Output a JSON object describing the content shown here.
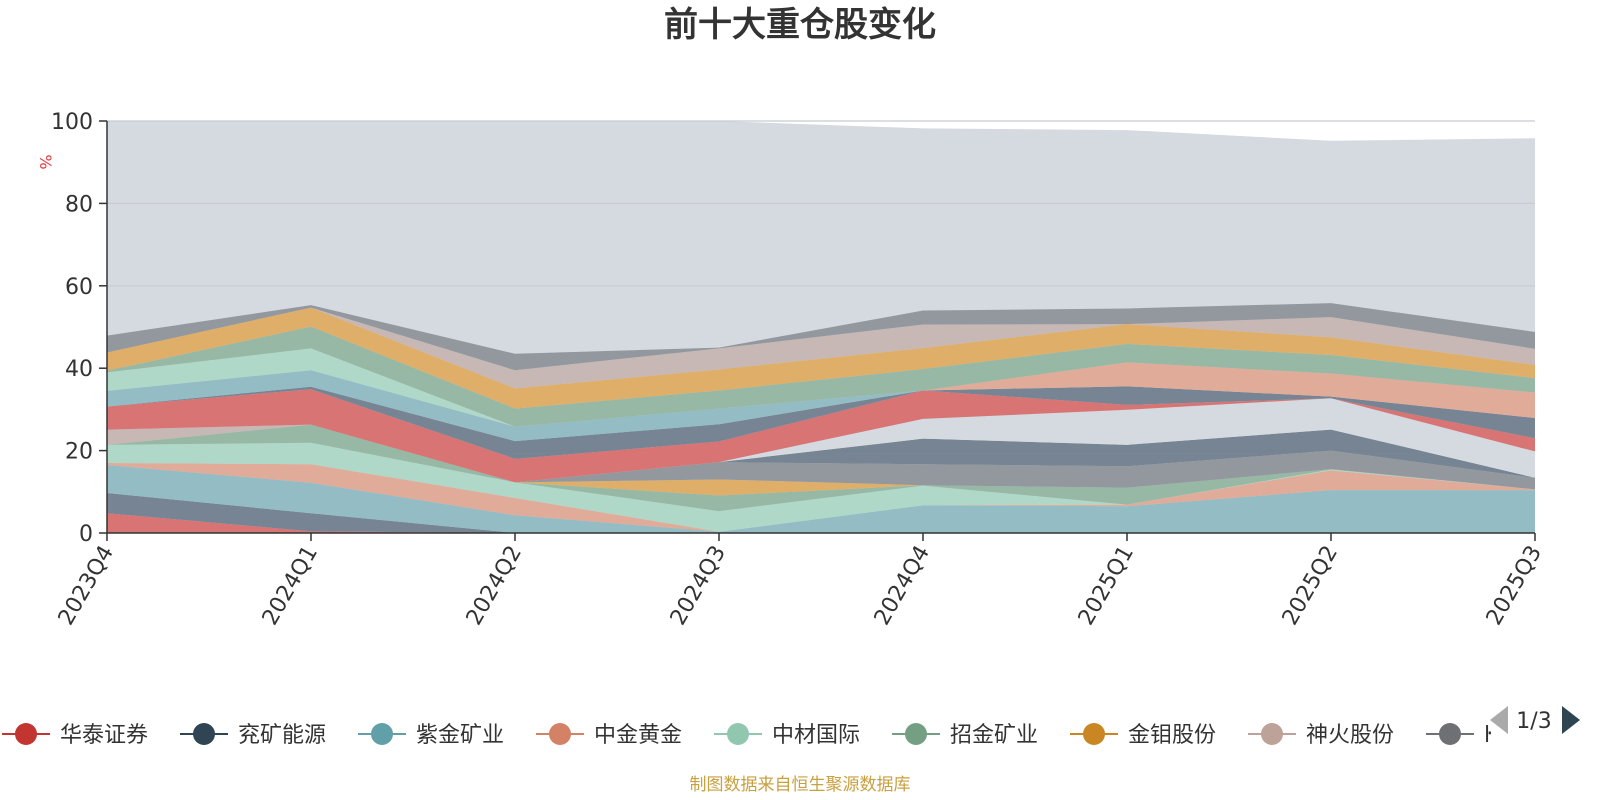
{
  "chart_data": {
    "type": "area",
    "stacking": "stacked",
    "title": "前十大重仓股变化",
    "ylabel": "%",
    "ylim": [
      0,
      100
    ],
    "y_ticks": [
      0,
      20,
      40,
      60,
      80,
      100
    ],
    "categories": [
      "2023Q4",
      "2024Q1",
      "2024Q2",
      "2024Q3",
      "2024Q4",
      "2025Q1",
      "2025Q2",
      "2025Q3"
    ],
    "grid": true,
    "source": "制图数据来自恒生聚源数据库",
    "legend": {
      "position": "bottom",
      "visible_items": [
        "华泰证券",
        "兖矿能源",
        "紫金矿业",
        "中金黄金",
        "中材国际",
        "招金矿业",
        "金钼股份",
        "神火股份",
        "ŀ"
      ],
      "page_label": "1/3"
    },
    "background_area": {
      "values": [
        100,
        100,
        100,
        100,
        98.2,
        97.8,
        95.2,
        95.8
      ],
      "color": "#d5dae0"
    },
    "series": [
      {
        "color": "#d86c6a",
        "values": [
          4.8,
          0.4,
          0,
          0,
          0,
          0,
          0,
          0
        ]
      },
      {
        "color": "#6e7d8c",
        "values": [
          4.9,
          4.4,
          0,
          0,
          0,
          0,
          0,
          0
        ]
      },
      {
        "color": "#8ebac1",
        "values": [
          6.8,
          7.4,
          4.3,
          0.3,
          6.7,
          6.5,
          10.4,
          10.4
        ]
      },
      {
        "color": "#e2a793",
        "values": [
          0.5,
          4.5,
          4.2,
          0,
          0,
          0.4,
          4.8,
          0.2
        ]
      },
      {
        "color": "#acd8c5",
        "values": [
          4.4,
          5.2,
          3.8,
          5,
          4.8,
          0,
          0.2,
          0
        ]
      },
      {
        "color": "#90b59e",
        "values": [
          0,
          4.4,
          0,
          3.8,
          0.1,
          4.1,
          0.1,
          0
        ]
      },
      {
        "color": "#dfab5e",
        "values": [
          0,
          0,
          0,
          3.9,
          0,
          0,
          0,
          0
        ]
      },
      {
        "color": "#c5b5b1",
        "values": [
          3.7,
          0,
          0,
          0,
          0,
          0,
          0,
          0
        ]
      },
      {
        "color": "#8d9398",
        "values": [
          0,
          0,
          0,
          4.2,
          5.1,
          5.2,
          4.5,
          2.8
        ]
      },
      {
        "color": "#6e7d8c",
        "values": [
          0,
          0,
          0,
          0,
          6.2,
          5.2,
          5.1,
          0
        ]
      },
      {
        "color": "#d5dae0",
        "values": [
          0,
          0,
          0,
          0,
          4.8,
          8.5,
          7.6,
          6.4
        ]
      },
      {
        "color": "#d86c6a",
        "values": [
          5.6,
          8.6,
          5.7,
          5,
          6.9,
          1.2,
          0,
          3.2
        ]
      },
      {
        "color": "#6e7d8c",
        "values": [
          0,
          0.6,
          4.3,
          4.2,
          0,
          4.5,
          0.4,
          4.9
        ]
      },
      {
        "color": "#8ebac1",
        "values": [
          3.8,
          4,
          3.5,
          3.8,
          0,
          0,
          0,
          0
        ]
      },
      {
        "color": "#e2a793",
        "values": [
          0,
          0,
          0,
          0,
          0,
          5.8,
          5.6,
          6.2
        ]
      },
      {
        "color": "#acd8c5",
        "values": [
          4.5,
          5.3,
          0,
          0,
          0,
          0,
          0,
          0
        ]
      },
      {
        "color": "#90b59e",
        "values": [
          0.4,
          5.3,
          4.4,
          4.4,
          5.2,
          4.5,
          4.5,
          3.5
        ]
      },
      {
        "color": "#dfab5e",
        "values": [
          4.4,
          4.6,
          4.9,
          5.1,
          5.1,
          4.8,
          4.3,
          3.2
        ]
      },
      {
        "color": "#c5b5b1",
        "values": [
          0,
          0,
          4.4,
          5.1,
          5.7,
          0,
          4.9,
          3.9
        ]
      },
      {
        "color": "#8d9398",
        "values": [
          4.1,
          0.6,
          4.0,
          0.2,
          3.4,
          3.8,
          3.4,
          4.1
        ]
      }
    ]
  },
  "legend_colors": [
    "#c23531",
    "#2f4554",
    "#61a0a8",
    "#d48265",
    "#91c7ae",
    "#749f83",
    "#ca8622",
    "#bda29a",
    "#6e7074"
  ],
  "pager_colors": {
    "prev": "#aaaaaa",
    "next": "#2f4554"
  }
}
